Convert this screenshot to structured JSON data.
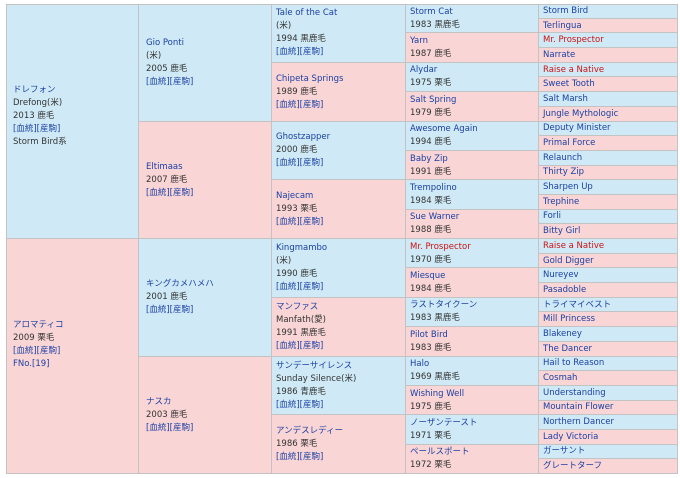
{
  "gen1": [
    {
      "lines": [
        "ドレフォン",
        "Drefong(米)",
        "2013 鹿毛"
      ],
      "links": "[血統][産駒]",
      "extra": "Storm Bird系",
      "sex": "male"
    },
    {
      "lines": [
        "アロマティコ",
        "2009 栗毛"
      ],
      "links": "[血統][産駒]",
      "extra": "FNo.[19]",
      "sex": "female"
    }
  ],
  "gen2": [
    {
      "lines": [
        "Gio Ponti",
        "(米)",
        "2005 鹿毛"
      ],
      "links": "[血統][産駒]",
      "sex": "male"
    },
    {
      "lines": [
        "Eltimaas",
        "2007 鹿毛"
      ],
      "links": "[血統][産駒]",
      "sex": "female"
    },
    {
      "lines": [
        "キングカメハメハ",
        "2001 鹿毛"
      ],
      "links": "[血統][産駒]",
      "sex": "male"
    },
    {
      "lines": [
        "ナスカ",
        "2003 鹿毛"
      ],
      "links": "[血統][産駒]",
      "sex": "female"
    }
  ],
  "gen3": [
    {
      "lines": [
        "Tale of the Cat",
        "(米)",
        "1994 黒鹿毛"
      ],
      "links": "[血統][産駒]",
      "sex": "male"
    },
    {
      "lines": [
        "Chipeta Springs",
        "1989 鹿毛"
      ],
      "links": "[血統][産駒]",
      "sex": "female"
    },
    {
      "lines": [
        "Ghostzapper",
        "2000 鹿毛"
      ],
      "links": "[血統][産駒]",
      "sex": "male"
    },
    {
      "lines": [
        "Najecam",
        "1993 栗毛"
      ],
      "links": "[血統][産駒]",
      "sex": "female"
    },
    {
      "lines": [
        "Kingmambo",
        "(米)",
        "1990 鹿毛"
      ],
      "links": "[血統][産駒]",
      "sex": "male"
    },
    {
      "lines": [
        "マンファス",
        "Manfath(愛)",
        "1991 黒鹿毛"
      ],
      "links": "[血統][産駒]",
      "sex": "female"
    },
    {
      "lines": [
        "サンデーサイレンス",
        "Sunday Silence(米)",
        "1986 青鹿毛"
      ],
      "links": "[血統][産駒]",
      "sex": "male"
    },
    {
      "lines": [
        "アンデスレディー",
        "1986 栗毛"
      ],
      "links": "[血統][産駒]",
      "sex": "female"
    }
  ],
  "gen4": [
    {
      "name": "Storm Cat",
      "info": "1983 黒鹿毛",
      "sex": "male",
      "red": false
    },
    {
      "name": "Yarn",
      "info": "1987 鹿毛",
      "sex": "female",
      "red": false
    },
    {
      "name": "Alydar",
      "info": "1975 栗毛",
      "sex": "male",
      "red": false
    },
    {
      "name": "Salt Spring",
      "info": "1979 鹿毛",
      "sex": "female",
      "red": false
    },
    {
      "name": "Awesome Again",
      "info": "1994 鹿毛",
      "sex": "male",
      "red": false
    },
    {
      "name": "Baby Zip",
      "info": "1991 鹿毛",
      "sex": "female",
      "red": false
    },
    {
      "name": "Trempolino",
      "info": "1984 栗毛",
      "sex": "male",
      "red": false
    },
    {
      "name": "Sue Warner",
      "info": "1988 鹿毛",
      "sex": "female",
      "red": false
    },
    {
      "name": "Mr. Prospector",
      "info": "1970 鹿毛",
      "sex": "male",
      "red": true
    },
    {
      "name": "Miesque",
      "info": "1984 鹿毛",
      "sex": "female",
      "red": false
    },
    {
      "name": "ラストタイクーン",
      "info": "1983 黒鹿毛",
      "sex": "male",
      "red": false
    },
    {
      "name": "Pilot Bird",
      "info": "1983 鹿毛",
      "sex": "female",
      "red": false
    },
    {
      "name": "Halo",
      "info": "1969 黒鹿毛",
      "sex": "male",
      "red": false
    },
    {
      "name": "Wishing Well",
      "info": "1975 鹿毛",
      "sex": "female",
      "red": false
    },
    {
      "name": "ノーザンテースト",
      "info": "1971 栗毛",
      "sex": "male",
      "red": false
    },
    {
      "name": "ペールスポート",
      "info": "1972 栗毛",
      "sex": "female",
      "red": false
    }
  ],
  "gen5": [
    {
      "name": "Storm Bird",
      "sex": "male",
      "red": false
    },
    {
      "name": "Terlingua",
      "sex": "female",
      "red": false
    },
    {
      "name": "Mr. Prospector",
      "sex": "male",
      "red": true
    },
    {
      "name": "Narrate",
      "sex": "female",
      "red": false
    },
    {
      "name": "Raise a Native",
      "sex": "male",
      "red": true
    },
    {
      "name": "Sweet Tooth",
      "sex": "female",
      "red": false
    },
    {
      "name": "Salt Marsh",
      "sex": "male",
      "red": false
    },
    {
      "name": "Jungle Mythologic",
      "sex": "female",
      "red": false
    },
    {
      "name": "Deputy Minister",
      "sex": "male",
      "red": false
    },
    {
      "name": "Primal Force",
      "sex": "female",
      "red": false
    },
    {
      "name": "Relaunch",
      "sex": "male",
      "red": false
    },
    {
      "name": "Thirty Zip",
      "sex": "female",
      "red": false
    },
    {
      "name": "Sharpen Up",
      "sex": "male",
      "red": false
    },
    {
      "name": "Trephine",
      "sex": "female",
      "red": false
    },
    {
      "name": "Forli",
      "sex": "male",
      "red": false
    },
    {
      "name": "Bitty Girl",
      "sex": "female",
      "red": false
    },
    {
      "name": "Raise a Native",
      "sex": "male",
      "red": true
    },
    {
      "name": "Gold Digger",
      "sex": "female",
      "red": false
    },
    {
      "name": "Nureyev",
      "sex": "male",
      "red": false
    },
    {
      "name": "Pasadoble",
      "sex": "female",
      "red": false
    },
    {
      "name": "トライマイベスト",
      "sex": "male",
      "red": false
    },
    {
      "name": "Mill Princess",
      "sex": "female",
      "red": false
    },
    {
      "name": "Blakeney",
      "sex": "male",
      "red": false
    },
    {
      "name": "The Dancer",
      "sex": "female",
      "red": false
    },
    {
      "name": "Hail to Reason",
      "sex": "male",
      "red": false
    },
    {
      "name": "Cosmah",
      "sex": "female",
      "red": false
    },
    {
      "name": "Understanding",
      "sex": "male",
      "red": false
    },
    {
      "name": "Mountain Flower",
      "sex": "female",
      "red": false
    },
    {
      "name": "Northern Dancer",
      "sex": "male",
      "red": false
    },
    {
      "name": "Lady Victoria",
      "sex": "female",
      "red": false
    },
    {
      "name": "ガーサント",
      "sex": "male",
      "red": false
    },
    {
      "name": "グレートターフ",
      "sex": "female",
      "red": false
    }
  ],
  "colors": {
    "male_bg": "#cfeaf6",
    "female_bg": "#f9d5d5",
    "link": "#1a3fa4",
    "highlight": "#cc1111",
    "border": "#c3c3c3"
  }
}
